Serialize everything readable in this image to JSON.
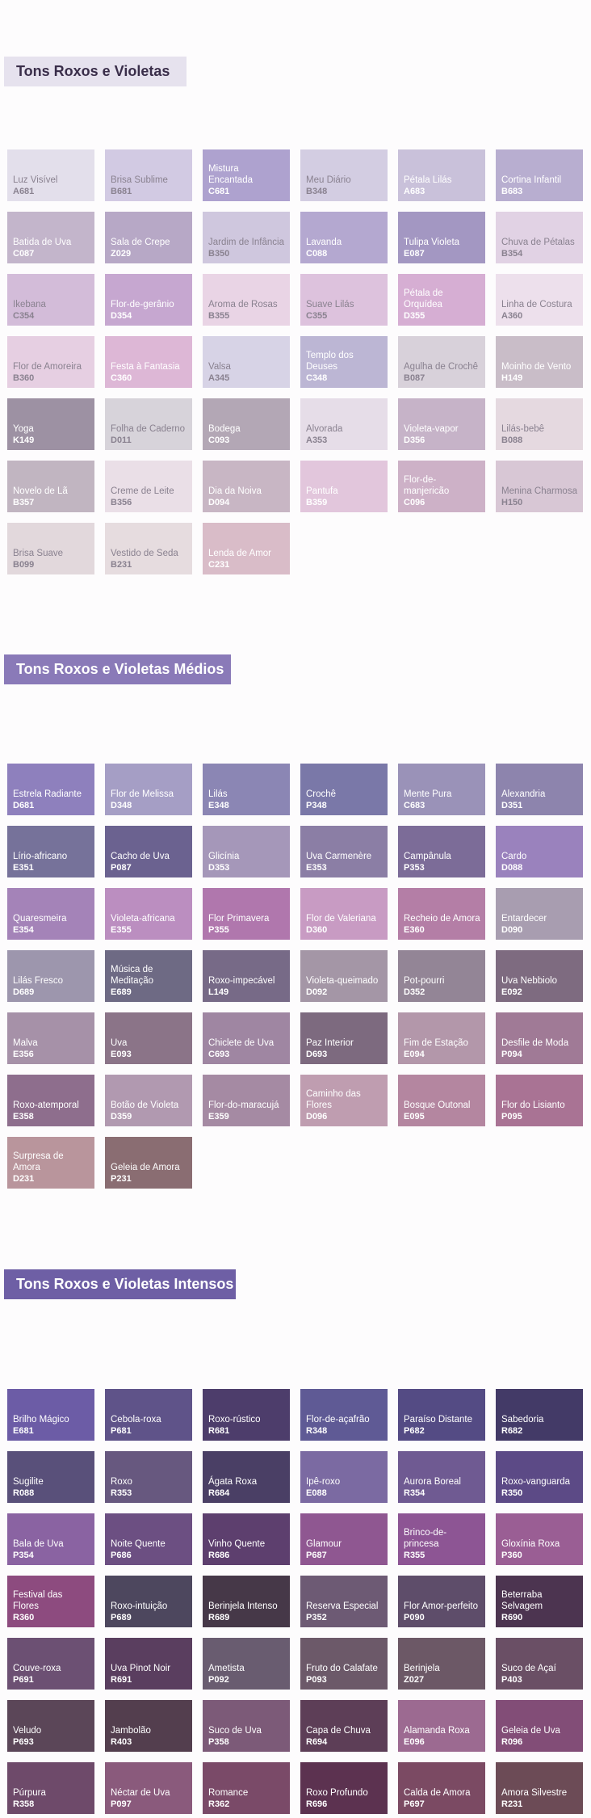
{
  "sections": [
    {
      "title": "Tons Roxos e Violetas",
      "title_bg": "#e6e2ee",
      "title_color": "#3a2e4a",
      "colors": [
        {
          "name": "Luz Visível",
          "code": "A681",
          "hex": "#e3dfeb",
          "text": "light"
        },
        {
          "name": "Brisa Sublime",
          "code": "B681",
          "hex": "#d2cae3",
          "text": "light"
        },
        {
          "name": "Mistura Encantada",
          "code": "C681",
          "hex": "#aea2cf",
          "text": "dark"
        },
        {
          "name": "Meu Diário",
          "code": "B348",
          "hex": "#d3cde2",
          "text": "light"
        },
        {
          "name": "Pétala Lilás",
          "code": "A683",
          "hex": "#c9c1da",
          "text": "dark"
        },
        {
          "name": "Cortina Infantil",
          "code": "B683",
          "hex": "#b8aed0",
          "text": "dark"
        },
        {
          "name": "Batida de Uva",
          "code": "C087",
          "hex": "#c3b5cb",
          "text": "dark"
        },
        {
          "name": "Sala de Crepe",
          "code": "Z029",
          "hex": "#b7a8c6",
          "text": "dark"
        },
        {
          "name": "Jardim de Infância",
          "code": "B350",
          "hex": "#cfc7de",
          "text": "light"
        },
        {
          "name": "Lavanda",
          "code": "C088",
          "hex": "#b4a8d0",
          "text": "dark"
        },
        {
          "name": "Tulipa Violeta",
          "code": "E087",
          "hex": "#a397c2",
          "text": "dark"
        },
        {
          "name": "Chuva de Pétalas",
          "code": "B354",
          "hex": "#e1d2e4",
          "text": "light"
        },
        {
          "name": "Ikebana",
          "code": "C354",
          "hex": "#d3bcd9",
          "text": "light"
        },
        {
          "name": "Flor-de-gerânio",
          "code": "D354",
          "hex": "#c6a7d0",
          "text": "dark"
        },
        {
          "name": "Aroma de Rosas",
          "code": "B355",
          "hex": "#e9d4e5",
          "text": "light"
        },
        {
          "name": "Suave Lilás",
          "code": "C355",
          "hex": "#ddc2dd",
          "text": "light"
        },
        {
          "name": "Pétala de Orquídea",
          "code": "D355",
          "hex": "#d6aed3",
          "text": "dark"
        },
        {
          "name": "Linha de Costura",
          "code": "A360",
          "hex": "#ede0ec",
          "text": "light"
        },
        {
          "name": "Flor de Amoreira",
          "code": "B360",
          "hex": "#e6cfe2",
          "text": "light"
        },
        {
          "name": "Festa à Fantasia",
          "code": "C360",
          "hex": "#ddb7d6",
          "text": "dark"
        },
        {
          "name": "Valsa",
          "code": "A345",
          "hex": "#d7d3e6",
          "text": "light"
        },
        {
          "name": "Templo dos Deuses",
          "code": "C348",
          "hex": "#bcb6d4",
          "text": "dark"
        },
        {
          "name": "Agulha de Crochê",
          "code": "B087",
          "hex": "#d8d1da",
          "text": "light"
        },
        {
          "name": "Moinho de Vento",
          "code": "H149",
          "hex": "#c9bdc8",
          "text": "dark"
        },
        {
          "name": "Yoga",
          "code": "K149",
          "hex": "#9d91a3",
          "text": "dark"
        },
        {
          "name": "Folha de Caderno",
          "code": "D011",
          "hex": "#d7d3da",
          "text": "light"
        },
        {
          "name": "Bodega",
          "code": "C093",
          "hex": "#b3a7b5",
          "text": "dark"
        },
        {
          "name": "Alvorada",
          "code": "A353",
          "hex": "#e6dde8",
          "text": "light"
        },
        {
          "name": "Violeta-vapor",
          "code": "D356",
          "hex": "#c6b3c8",
          "text": "dark"
        },
        {
          "name": "Lilás-bebê",
          "code": "B088",
          "hex": "#e5d9e0",
          "text": "light"
        },
        {
          "name": "Novelo de Lã",
          "code": "B357",
          "hex": "#c1b5c1",
          "text": "dark"
        },
        {
          "name": "Creme de Leite",
          "code": "B356",
          "hex": "#eadfe7",
          "text": "light"
        },
        {
          "name": "Dia da Noiva",
          "code": "D094",
          "hex": "#c8b6c4",
          "text": "dark"
        },
        {
          "name": "Pantufa",
          "code": "B359",
          "hex": "#e2c6dc",
          "text": "dark"
        },
        {
          "name": "Flor-de-manjericão",
          "code": "C096",
          "hex": "#cdb1c7",
          "text": "dark"
        },
        {
          "name": "Menina Charmosa",
          "code": "H150",
          "hex": "#d8c7d5",
          "text": "light"
        },
        {
          "name": "Brisa Suave",
          "code": "B099",
          "hex": "#e2d8dc",
          "text": "light"
        },
        {
          "name": "Vestido de Seda",
          "code": "B231",
          "hex": "#e6dcdf",
          "text": "light"
        },
        {
          "name": "Lenda de Amor",
          "code": "C231",
          "hex": "#d9bcc8",
          "text": "dark"
        }
      ]
    },
    {
      "title": "Tons Roxos e Violetas Médios",
      "title_bg": "#8a7ab8",
      "title_color": "#ffffff",
      "colors": [
        {
          "name": "Estrela Radiante",
          "code": "D681",
          "hex": "#8e80bd",
          "text": "dark"
        },
        {
          "name": "Flor de Melissa",
          "code": "D348",
          "hex": "#a59ec5",
          "text": "dark"
        },
        {
          "name": "Lilás",
          "code": "E348",
          "hex": "#8b86b4",
          "text": "dark"
        },
        {
          "name": "Crochê",
          "code": "P348",
          "hex": "#7a78a8",
          "text": "dark"
        },
        {
          "name": "Mente Pura",
          "code": "C683",
          "hex": "#9a92b8",
          "text": "dark"
        },
        {
          "name": "Alexandria",
          "code": "D351",
          "hex": "#8d84ad",
          "text": "dark"
        },
        {
          "name": "Lírio-africano",
          "code": "E351",
          "hex": "#76729a",
          "text": "dark"
        },
        {
          "name": "Cacho de Uva",
          "code": "P087",
          "hex": "#6b6290",
          "text": "dark"
        },
        {
          "name": "Glicínia",
          "code": "D353",
          "hex": "#a597b9",
          "text": "dark"
        },
        {
          "name": "Uva Carmenère",
          "code": "E353",
          "hex": "#8b7ea5",
          "text": "dark"
        },
        {
          "name": "Campânula",
          "code": "P353",
          "hex": "#7c6c98",
          "text": "dark"
        },
        {
          "name": "Cardo",
          "code": "D088",
          "hex": "#9a82bd",
          "text": "dark"
        },
        {
          "name": "Quaresmeira",
          "code": "E354",
          "hex": "#a483b8",
          "text": "dark"
        },
        {
          "name": "Violeta-africana",
          "code": "E355",
          "hex": "#bb8ec0",
          "text": "dark"
        },
        {
          "name": "Flor Primavera",
          "code": "P355",
          "hex": "#b077ad",
          "text": "dark"
        },
        {
          "name": "Flor de Valeriana",
          "code": "D360",
          "hex": "#c89bc3",
          "text": "dark"
        },
        {
          "name": "Recheio de Amora",
          "code": "E360",
          "hex": "#b47ea6",
          "text": "dark"
        },
        {
          "name": "Entardecer",
          "code": "D090",
          "hex": "#a89db0",
          "text": "dark"
        },
        {
          "name": "Lilás Fresco",
          "code": "D689",
          "hex": "#9d96ad",
          "text": "dark"
        },
        {
          "name": "Música de Meditação",
          "code": "E689",
          "hex": "#6e6a84",
          "text": "dark"
        },
        {
          "name": "Roxo-impecável",
          "code": "L149",
          "hex": "#776a87",
          "text": "dark"
        },
        {
          "name": "Violeta-queimado",
          "code": "D092",
          "hex": "#a496a6",
          "text": "dark"
        },
        {
          "name": "Pot-pourri",
          "code": "D352",
          "hex": "#938596",
          "text": "dark"
        },
        {
          "name": "Uva Nebbiolo",
          "code": "E092",
          "hex": "#7e6b80",
          "text": "dark"
        },
        {
          "name": "Malva",
          "code": "E356",
          "hex": "#a691a8",
          "text": "dark"
        },
        {
          "name": "Uva",
          "code": "E093",
          "hex": "#8b7488",
          "text": "dark"
        },
        {
          "name": "Chiclete de Uva",
          "code": "C693",
          "hex": "#9f86a2",
          "text": "dark"
        },
        {
          "name": "Paz Interior",
          "code": "D693",
          "hex": "#7d6a7f",
          "text": "dark"
        },
        {
          "name": "Fim de Estação",
          "code": "E094",
          "hex": "#b397aa",
          "text": "dark"
        },
        {
          "name": "Desfile de Moda",
          "code": "P094",
          "hex": "#a07a96",
          "text": "dark"
        },
        {
          "name": "Roxo-atemporal",
          "code": "E358",
          "hex": "#8e6e8d",
          "text": "dark"
        },
        {
          "name": "Botão de Violeta",
          "code": "D359",
          "hex": "#b199b0",
          "text": "dark"
        },
        {
          "name": "Flor-do-maracujá",
          "code": "E359",
          "hex": "#a58aa3",
          "text": "dark"
        },
        {
          "name": "Caminho das Flores",
          "code": "D096",
          "hex": "#bf9db0",
          "text": "dark"
        },
        {
          "name": "Bosque Outonal",
          "code": "E095",
          "hex": "#b486a0",
          "text": "dark"
        },
        {
          "name": "Flor do Lisianto",
          "code": "P095",
          "hex": "#a97394",
          "text": "dark"
        },
        {
          "name": "Surpresa de Amora",
          "code": "D231",
          "hex": "#b9959c",
          "text": "dark"
        },
        {
          "name": "Geleia de Amora",
          "code": "P231",
          "hex": "#8a6d72",
          "text": "dark"
        }
      ]
    },
    {
      "title": "Tons Roxos e Violetas Intensos",
      "title_bg": "#6e5fa5",
      "title_color": "#ffffff",
      "colors": [
        {
          "name": "Brilho Mágico",
          "code": "E681",
          "hex": "#6c5ca6",
          "text": "dark"
        },
        {
          "name": "Cebola-roxa",
          "code": "P681",
          "hex": "#5f5389",
          "text": "dark"
        },
        {
          "name": "Roxo-rústico",
          "code": "R681",
          "hex": "#4d3d6b",
          "text": "dark"
        },
        {
          "name": "Flor-de-açafrão",
          "code": "R348",
          "hex": "#5f5a95",
          "text": "dark"
        },
        {
          "name": "Paraíso Distante",
          "code": "P682",
          "hex": "#544b84",
          "text": "dark"
        },
        {
          "name": "Sabedoria",
          "code": "R682",
          "hex": "#433a67",
          "text": "dark"
        },
        {
          "name": "Sugilite",
          "code": "R088",
          "hex": "#59507a",
          "text": "dark"
        },
        {
          "name": "Roxo",
          "code": "R353",
          "hex": "#67587f",
          "text": "dark"
        },
        {
          "name": "Ágata Roxa",
          "code": "R684",
          "hex": "#4a3f65",
          "text": "dark"
        },
        {
          "name": "Ipê-roxo",
          "code": "E088",
          "hex": "#7b6aa2",
          "text": "dark"
        },
        {
          "name": "Aurora Boreal",
          "code": "R354",
          "hex": "#6f5a92",
          "text": "dark"
        },
        {
          "name": "Roxo-vanguarda",
          "code": "R350",
          "hex": "#5c4a86",
          "text": "dark"
        },
        {
          "name": "Bala de Uva",
          "code": "P354",
          "hex": "#8a63a2",
          "text": "dark"
        },
        {
          "name": "Noite Quente",
          "code": "P686",
          "hex": "#6c4f82",
          "text": "dark"
        },
        {
          "name": "Vinho Quente",
          "code": "R686",
          "hex": "#5d3f6e",
          "text": "dark"
        },
        {
          "name": "Glamour",
          "code": "P687",
          "hex": "#8f5791",
          "text": "dark"
        },
        {
          "name": "Brinco-de-princesa",
          "code": "R355",
          "hex": "#8d5594",
          "text": "dark"
        },
        {
          "name": "Gloxínia Roxa",
          "code": "P360",
          "hex": "#9a5e94",
          "text": "dark"
        },
        {
          "name": "Festival das Flores",
          "code": "R360",
          "hex": "#8d4b7f",
          "text": "dark"
        },
        {
          "name": "Roxo-intuição",
          "code": "P689",
          "hex": "#4d475e",
          "text": "dark"
        },
        {
          "name": "Berinjela Intenso",
          "code": "R689",
          "hex": "#463848",
          "text": "dark"
        },
        {
          "name": "Reserva Especial",
          "code": "P352",
          "hex": "#6d5a74",
          "text": "dark"
        },
        {
          "name": "Flor Amor-perfeito",
          "code": "P090",
          "hex": "#5e4d6a",
          "text": "dark"
        },
        {
          "name": "Beterraba Selvagem",
          "code": "R690",
          "hex": "#4c3450",
          "text": "dark"
        },
        {
          "name": "Couve-roxa",
          "code": "P691",
          "hex": "#6c5073",
          "text": "dark"
        },
        {
          "name": "Uva Pinot Noir",
          "code": "R691",
          "hex": "#5a3e5f",
          "text": "dark"
        },
        {
          "name": "Ametista",
          "code": "P092",
          "hex": "#695c70",
          "text": "dark"
        },
        {
          "name": "Fruto do Calafate",
          "code": "P093",
          "hex": "#6c5969",
          "text": "dark"
        },
        {
          "name": "Berinjela",
          "code": "Z027",
          "hex": "#6c5866",
          "text": "dark"
        },
        {
          "name": "Suco de Açaí",
          "code": "P403",
          "hex": "#6a4f65",
          "text": "dark"
        },
        {
          "name": "Veludo",
          "code": "P693",
          "hex": "#5b4658",
          "text": "dark"
        },
        {
          "name": "Jambolão",
          "code": "R403",
          "hex": "#533e4e",
          "text": "dark"
        },
        {
          "name": "Suco de Uva",
          "code": "P358",
          "hex": "#7c5a78",
          "text": "dark"
        },
        {
          "name": "Capa de Chuva",
          "code": "R694",
          "hex": "#5d3e57",
          "text": "dark"
        },
        {
          "name": "Alamanda Roxa",
          "code": "E096",
          "hex": "#9c6a91",
          "text": "dark"
        },
        {
          "name": "Geleia de Uva",
          "code": "R096",
          "hex": "#824d77",
          "text": "dark"
        },
        {
          "name": "Púrpura",
          "code": "R358",
          "hex": "#6e4a6a",
          "text": "dark"
        },
        {
          "name": "Néctar de Uva",
          "code": "P097",
          "hex": "#8a5a7c",
          "text": "dark"
        },
        {
          "name": "Romance",
          "code": "R362",
          "hex": "#7a4a68",
          "text": "dark"
        },
        {
          "name": "Roxo Profundo",
          "code": "R696",
          "hex": "#5c3250",
          "text": "dark"
        },
        {
          "name": "Calda de Amora",
          "code": "P697",
          "hex": "#7b4a63",
          "text": "dark"
        },
        {
          "name": "Amora Silvestre",
          "code": "R231",
          "hex": "#6c4b56",
          "text": "dark"
        }
      ]
    }
  ]
}
